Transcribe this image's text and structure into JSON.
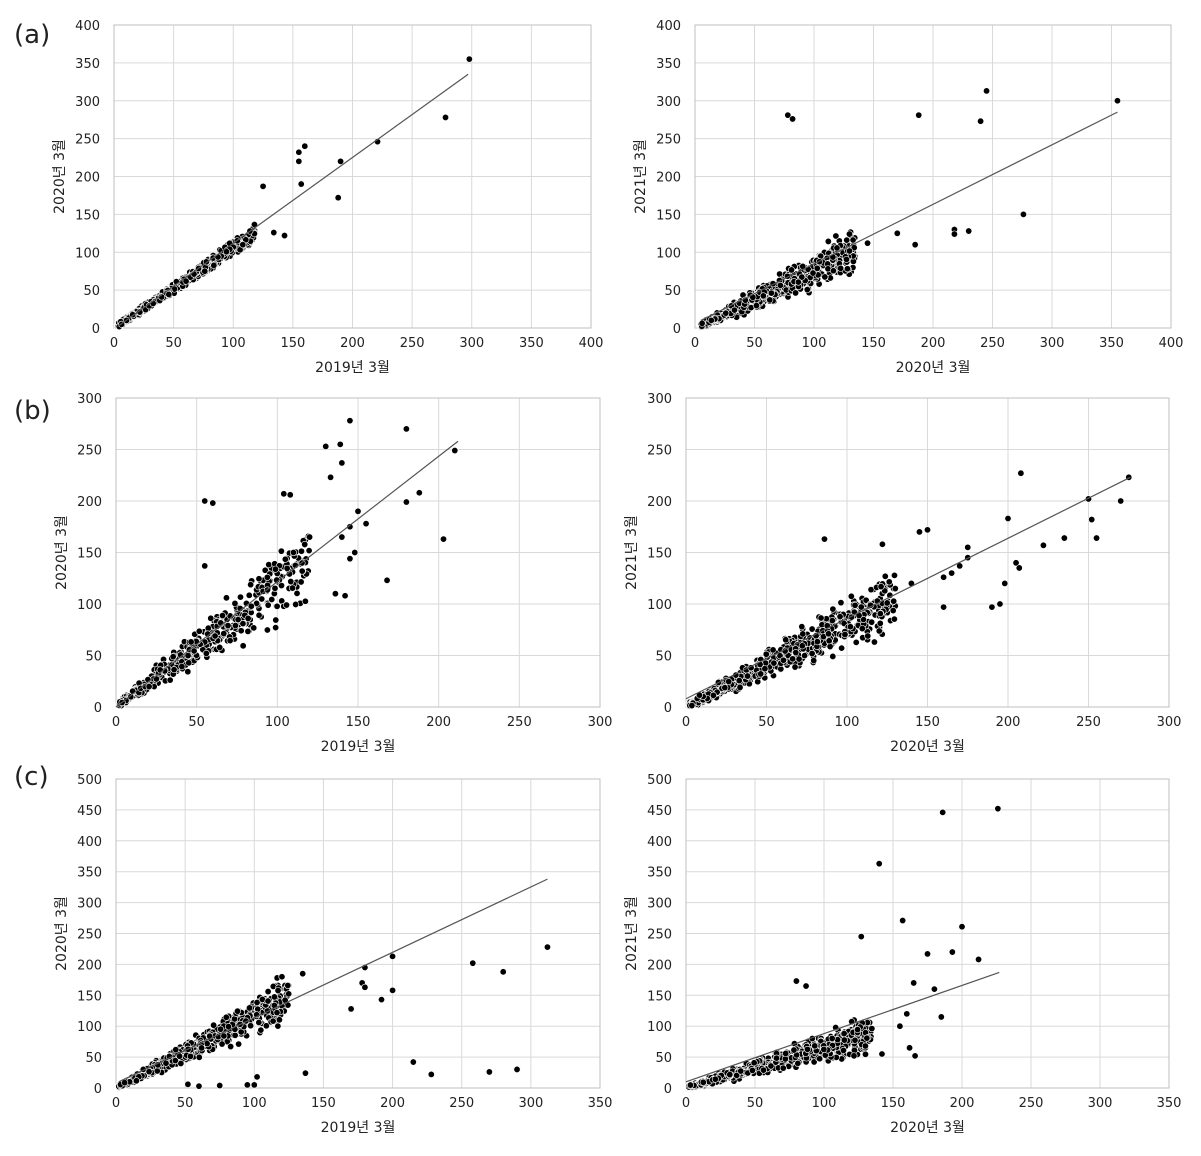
{
  "panel_labels": [
    "(a)",
    "(b)",
    "(c)"
  ],
  "style": {
    "point_color": "#000000",
    "point_edge": "#ffffff",
    "grid_color": "#d9d9d9",
    "fit_line_color": "#555555"
  },
  "chart_data": [
    {
      "type": "scatter",
      "panel": "(a)",
      "title": "",
      "xlabel": "2019년 3월",
      "ylabel": "2020년 3월",
      "xlim": [
        0,
        400
      ],
      "ylim": [
        0,
        400
      ],
      "xticks": [
        0,
        50,
        100,
        150,
        200,
        250,
        300,
        350,
        400
      ],
      "yticks": [
        0,
        50,
        100,
        150,
        200,
        250,
        300,
        350,
        400
      ],
      "grid": true,
      "fit_line": {
        "x": [
          3,
          297
        ],
        "y": [
          2,
          335
        ]
      },
      "dense_cloud": {
        "x_range": [
          3,
          118
        ],
        "slope": 1.05,
        "spread": 0.1,
        "count": 600
      },
      "outliers": [
        [
          125,
          187
        ],
        [
          134,
          126
        ],
        [
          143,
          122
        ],
        [
          155,
          232
        ],
        [
          155,
          220
        ],
        [
          160,
          240
        ],
        [
          157,
          190
        ],
        [
          190,
          220
        ],
        [
          188,
          172
        ],
        [
          221,
          246
        ],
        [
          278,
          278
        ],
        [
          298,
          355
        ],
        [
          114,
          128
        ],
        [
          108,
          110
        ]
      ]
    },
    {
      "type": "scatter",
      "panel": "(a)",
      "title": "",
      "xlabel": "2020년 3월",
      "ylabel": "2021년 3월",
      "xlim": [
        0,
        400
      ],
      "ylim": [
        0,
        400
      ],
      "xticks": [
        0,
        50,
        100,
        150,
        200,
        250,
        300,
        350,
        400
      ],
      "yticks": [
        0,
        50,
        100,
        150,
        200,
        250,
        300,
        350,
        400
      ],
      "grid": true,
      "fit_line": {
        "x": [
          5,
          355
        ],
        "y": [
          10,
          285
        ]
      },
      "dense_cloud": {
        "x_range": [
          5,
          135
        ],
        "slope": 0.75,
        "spread": 0.3,
        "count": 700
      },
      "outliers": [
        [
          78,
          281
        ],
        [
          82,
          276
        ],
        [
          188,
          281
        ],
        [
          245,
          313
        ],
        [
          240,
          273
        ],
        [
          355,
          300
        ],
        [
          276,
          150
        ],
        [
          218,
          130
        ],
        [
          218,
          124
        ],
        [
          230,
          128
        ],
        [
          170,
          125
        ],
        [
          185,
          110
        ],
        [
          145,
          112
        ]
      ]
    },
    {
      "type": "scatter",
      "panel": "(b)",
      "title": "",
      "xlabel": "2019년 3월",
      "ylabel": "2020년 3월",
      "xlim": [
        0,
        300
      ],
      "ylim": [
        0,
        300
      ],
      "xticks": [
        0,
        50,
        100,
        150,
        200,
        250,
        300
      ],
      "yticks": [
        0,
        50,
        100,
        150,
        200,
        250,
        300
      ],
      "grid": true,
      "fit_line": {
        "x": [
          0,
          212
        ],
        "y": [
          0,
          258
        ]
      },
      "dense_cloud": {
        "x_range": [
          2,
          120
        ],
        "slope": 1.15,
        "spread": 0.3,
        "count": 500
      },
      "outliers": [
        [
          55,
          200
        ],
        [
          60,
          198
        ],
        [
          104,
          207
        ],
        [
          108,
          206
        ],
        [
          130,
          253
        ],
        [
          139,
          255
        ],
        [
          145,
          278
        ],
        [
          180,
          270
        ],
        [
          133,
          223
        ],
        [
          140,
          237
        ],
        [
          210,
          249
        ],
        [
          150,
          190
        ],
        [
          188,
          208
        ],
        [
          180,
          199
        ],
        [
          140,
          165
        ],
        [
          145,
          175
        ],
        [
          155,
          178
        ],
        [
          148,
          150
        ],
        [
          145,
          144
        ],
        [
          136,
          110
        ],
        [
          142,
          108
        ],
        [
          168,
          123
        ],
        [
          203,
          163
        ],
        [
          120,
          165
        ],
        [
          110,
          150
        ],
        [
          55,
          137
        ]
      ]
    },
    {
      "type": "scatter",
      "panel": "(b)",
      "title": "",
      "xlabel": "2020년 3월",
      "ylabel": "2021년 3월",
      "xlim": [
        0,
        300
      ],
      "ylim": [
        0,
        300
      ],
      "xticks": [
        0,
        50,
        100,
        150,
        200,
        250,
        300
      ],
      "yticks": [
        0,
        50,
        100,
        150,
        200,
        250,
        300
      ],
      "grid": true,
      "fit_line": {
        "x": [
          0,
          276
        ],
        "y": [
          8,
          223
        ]
      },
      "dense_cloud": {
        "x_range": [
          2,
          130
        ],
        "slope": 0.8,
        "spread": 0.3,
        "count": 700
      },
      "outliers": [
        [
          208,
          227
        ],
        [
          275,
          223
        ],
        [
          270,
          200
        ],
        [
          250,
          202
        ],
        [
          252,
          182
        ],
        [
          255,
          164
        ],
        [
          235,
          164
        ],
        [
          222,
          157
        ],
        [
          200,
          183
        ],
        [
          205,
          140
        ],
        [
          207,
          135
        ],
        [
          198,
          120
        ],
        [
          195,
          100
        ],
        [
          190,
          97
        ],
        [
          175,
          155
        ],
        [
          175,
          145
        ],
        [
          170,
          137
        ],
        [
          165,
          130
        ],
        [
          160,
          126
        ],
        [
          160,
          97
        ],
        [
          150,
          172
        ],
        [
          145,
          170
        ],
        [
          122,
          158
        ],
        [
          86,
          163
        ],
        [
          140,
          120
        ],
        [
          130,
          115
        ]
      ]
    },
    {
      "type": "scatter",
      "panel": "(c)",
      "title": "",
      "xlabel": "2019년 3월",
      "ylabel": "2020년 3월",
      "xlim": [
        0,
        350
      ],
      "ylim": [
        0,
        500
      ],
      "xticks": [
        0,
        50,
        100,
        150,
        200,
        250,
        300,
        350
      ],
      "yticks": [
        0,
        50,
        100,
        150,
        200,
        250,
        300,
        350,
        400,
        450,
        500
      ],
      "grid": true,
      "fit_line": {
        "x": [
          2,
          312
        ],
        "y": [
          10,
          338
        ]
      },
      "dense_cloud": {
        "x_range": [
          2,
          125
        ],
        "slope": 1.15,
        "spread": 0.25,
        "count": 700
      },
      "outliers": [
        [
          135,
          185
        ],
        [
          120,
          180
        ],
        [
          180,
          195
        ],
        [
          178,
          170
        ],
        [
          180,
          163
        ],
        [
          200,
          213
        ],
        [
          200,
          158
        ],
        [
          192,
          143
        ],
        [
          170,
          128
        ],
        [
          258,
          202
        ],
        [
          280,
          188
        ],
        [
          312,
          228
        ],
        [
          215,
          42
        ],
        [
          228,
          22
        ],
        [
          270,
          26
        ],
        [
          290,
          30
        ],
        [
          137,
          24
        ],
        [
          100,
          5
        ],
        [
          95,
          5
        ],
        [
          75,
          4
        ],
        [
          52,
          6
        ],
        [
          102,
          18
        ],
        [
          60,
          3
        ]
      ]
    },
    {
      "type": "scatter",
      "panel": "(c)",
      "title": "",
      "xlabel": "2020년 3월",
      "ylabel": "2021년 3월",
      "xlim": [
        0,
        350
      ],
      "ylim": [
        0,
        500
      ],
      "xticks": [
        0,
        50,
        100,
        150,
        200,
        250,
        300,
        350
      ],
      "yticks": [
        0,
        50,
        100,
        150,
        200,
        250,
        300,
        350,
        400,
        450,
        500
      ],
      "grid": true,
      "fit_line": {
        "x": [
          0,
          227
        ],
        "y": [
          10,
          187
        ]
      },
      "dense_cloud": {
        "x_range": [
          2,
          135
        ],
        "slope": 0.65,
        "spread": 0.35,
        "count": 700
      },
      "outliers": [
        [
          186,
          446
        ],
        [
          226,
          452
        ],
        [
          140,
          363
        ],
        [
          157,
          271
        ],
        [
          200,
          261
        ],
        [
          127,
          245
        ],
        [
          175,
          217
        ],
        [
          193,
          220
        ],
        [
          212,
          208
        ],
        [
          165,
          170
        ],
        [
          180,
          160
        ],
        [
          160,
          120
        ],
        [
          185,
          115
        ],
        [
          162,
          65
        ],
        [
          166,
          52
        ],
        [
          80,
          173
        ],
        [
          87,
          165
        ],
        [
          155,
          100
        ],
        [
          130,
          68
        ],
        [
          142,
          55
        ]
      ]
    }
  ]
}
